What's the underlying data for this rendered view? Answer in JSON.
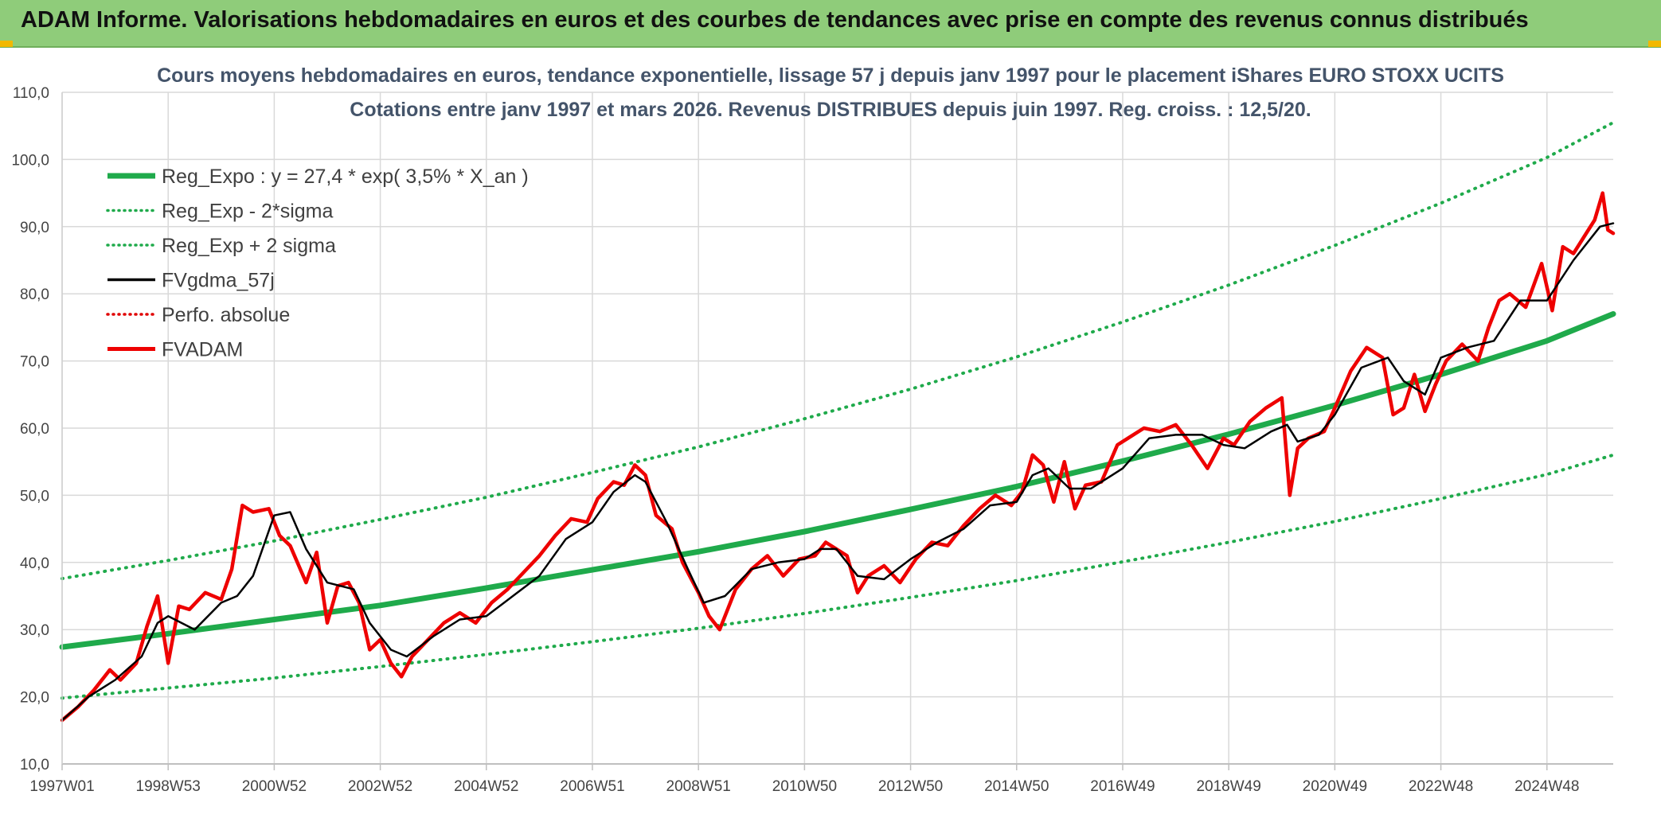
{
  "header": {
    "title": "ADAM Informe. Valorisations hebdomadaires en euros et des courbes de tendances avec prise en compte des revenus connus distribués"
  },
  "colors": {
    "header_bg": "#8fcc7a",
    "reg_expo": "#1faa4b",
    "sigma": "#1faa4b",
    "fvgdma": "#000000",
    "perfo": "#e00000",
    "fvadam": "#ee0000",
    "grid": "#d9d9d9"
  },
  "chart_data": {
    "type": "line",
    "title": "Cours moyens hebdomadaires en euros, tendance exponentielle, lissage 57 j depuis janv 1997 pour le placement iShares EURO STOXX UCITS",
    "subtitle": "Cotations entre janv 1997 et mars 2026. Revenus DISTRIBUES depuis juin 1997. Reg. croiss. : 12,5/20.",
    "ylim": [
      10,
      110
    ],
    "xlim": [
      1997.0,
      2026.25
    ],
    "y_ticks": [
      "10,0",
      "20,0",
      "30,0",
      "40,0",
      "50,0",
      "60,0",
      "70,0",
      "80,0",
      "90,0",
      "100,0",
      "110,0"
    ],
    "x_ticks": [
      {
        "label": "1997W01",
        "x": 1997.0
      },
      {
        "label": "1998W53",
        "x": 1999.0
      },
      {
        "label": "2000W52",
        "x": 2001.0
      },
      {
        "label": "2002W52",
        "x": 2003.0
      },
      {
        "label": "2004W52",
        "x": 2005.0
      },
      {
        "label": "2006W51",
        "x": 2007.0
      },
      {
        "label": "2008W51",
        "x": 2009.0
      },
      {
        "label": "2010W50",
        "x": 2011.0
      },
      {
        "label": "2012W50",
        "x": 2013.0
      },
      {
        "label": "2014W50",
        "x": 2015.0
      },
      {
        "label": "2016W49",
        "x": 2017.0
      },
      {
        "label": "2018W49",
        "x": 2019.0
      },
      {
        "label": "2020W49",
        "x": 2021.0
      },
      {
        "label": "2022W48",
        "x": 2023.0
      },
      {
        "label": "2024W48",
        "x": 2025.0
      }
    ],
    "grid": "both",
    "legend_position": "top-left",
    "series": [
      {
        "name": "Reg_Expo : y = 27,4 * exp( 3,5% *  X_an )",
        "style": "solid-thick",
        "color": "#1faa4b",
        "x": [
          1997.0,
          1999.0,
          2001.0,
          2003.0,
          2005.0,
          2007.0,
          2009.0,
          2011.0,
          2013.0,
          2015.0,
          2017.0,
          2019.0,
          2021.0,
          2023.0,
          2025.0,
          2026.25
        ],
        "y": [
          27.4,
          29.4,
          31.5,
          33.6,
          36.2,
          38.9,
          41.6,
          44.6,
          47.9,
          51.3,
          55.1,
          59.1,
          63.4,
          68.0,
          73.0,
          77.0
        ]
      },
      {
        "name": "Reg_Exp - 2*sigma",
        "style": "dotted",
        "color": "#1faa4b",
        "x": [
          1997.0,
          1999.0,
          2001.0,
          2003.0,
          2005.0,
          2007.0,
          2009.0,
          2011.0,
          2013.0,
          2015.0,
          2017.0,
          2019.0,
          2021.0,
          2023.0,
          2025.0,
          2026.25
        ],
        "y": [
          19.8,
          21.3,
          22.8,
          24.5,
          26.3,
          28.2,
          30.2,
          32.4,
          34.8,
          37.3,
          40.1,
          43.0,
          46.1,
          49.5,
          53.1,
          56.0
        ]
      },
      {
        "name": "Reg_Exp + 2 sigma",
        "style": "dotted",
        "color": "#1faa4b",
        "x": [
          1997.0,
          1999.0,
          2001.0,
          2003.0,
          2005.0,
          2007.0,
          2009.0,
          2011.0,
          2013.0,
          2015.0,
          2017.0,
          2019.0,
          2021.0,
          2023.0,
          2025.0,
          2026.25
        ],
        "y": [
          37.6,
          40.3,
          43.2,
          46.4,
          49.7,
          53.4,
          57.2,
          61.4,
          65.8,
          70.6,
          75.8,
          81.3,
          87.2,
          93.5,
          100.3,
          105.5
        ]
      },
      {
        "name": "FVgdma_57j",
        "style": "solid",
        "color": "#000000",
        "x": [
          1997.0,
          1997.5,
          1998.0,
          1998.5,
          1998.8,
          1999.0,
          1999.5,
          2000.0,
          2000.3,
          2000.6,
          2001.0,
          2001.3,
          2001.6,
          2002.0,
          2002.5,
          2002.8,
          2003.2,
          2003.5,
          2004.0,
          2004.5,
          2005.0,
          2005.5,
          2006.0,
          2006.5,
          2007.0,
          2007.4,
          2007.8,
          2008.0,
          2008.4,
          2008.8,
          2009.1,
          2009.5,
          2010.0,
          2010.5,
          2011.0,
          2011.3,
          2011.6,
          2012.0,
          2012.5,
          2013.0,
          2013.5,
          2014.0,
          2014.5,
          2015.0,
          2015.3,
          2015.6,
          2016.0,
          2016.4,
          2017.0,
          2017.5,
          2018.0,
          2018.5,
          2018.9,
          2019.3,
          2019.8,
          2020.1,
          2020.3,
          2020.7,
          2021.0,
          2021.5,
          2022.0,
          2022.3,
          2022.7,
          2023.0,
          2023.5,
          2024.0,
          2024.5,
          2025.0,
          2025.5,
          2026.0,
          2026.25
        ],
        "y": [
          16.5,
          20.0,
          22.5,
          26.0,
          31.0,
          32.0,
          30.0,
          34.0,
          35.0,
          38.0,
          47.0,
          47.5,
          42.0,
          37.0,
          36.0,
          31.0,
          27.0,
          26.0,
          29.0,
          31.5,
          32.0,
          35.0,
          38.0,
          43.5,
          46.0,
          50.5,
          53.0,
          52.0,
          46.0,
          39.0,
          34.0,
          35.0,
          39.0,
          40.0,
          40.5,
          42.0,
          42.0,
          38.0,
          37.5,
          40.5,
          43.0,
          45.0,
          48.5,
          49.0,
          53.0,
          54.0,
          51.0,
          51.0,
          54.0,
          58.5,
          59.0,
          59.0,
          57.5,
          57.0,
          59.5,
          60.5,
          58.0,
          59.0,
          62.0,
          69.0,
          70.5,
          67.0,
          65.0,
          70.5,
          72.0,
          73.0,
          79.0,
          79.0,
          85.0,
          90.0,
          90.5
        ]
      },
      {
        "name": "Perfo. absolue",
        "style": "dotted",
        "color": "#e00000",
        "x": [],
        "y": []
      },
      {
        "name": "FVADAM",
        "style": "solid-thick",
        "color": "#ee0000",
        "x": [
          1997.0,
          1997.3,
          1997.6,
          1997.9,
          1998.1,
          1998.4,
          1998.6,
          1998.8,
          1999.0,
          1999.2,
          1999.4,
          1999.7,
          2000.0,
          2000.2,
          2000.4,
          2000.6,
          2000.9,
          2001.1,
          2001.3,
          2001.6,
          2001.8,
          2002.0,
          2002.2,
          2002.4,
          2002.6,
          2002.8,
          2003.0,
          2003.2,
          2003.4,
          2003.6,
          2003.9,
          2004.2,
          2004.5,
          2004.8,
          2005.1,
          2005.4,
          2005.7,
          2006.0,
          2006.3,
          2006.6,
          2006.9,
          2007.1,
          2007.4,
          2007.6,
          2007.8,
          2008.0,
          2008.2,
          2008.5,
          2008.7,
          2009.0,
          2009.2,
          2009.4,
          2009.7,
          2010.0,
          2010.3,
          2010.6,
          2010.9,
          2011.2,
          2011.4,
          2011.6,
          2011.8,
          2012.0,
          2012.2,
          2012.5,
          2012.8,
          2013.1,
          2013.4,
          2013.7,
          2014.0,
          2014.3,
          2014.6,
          2014.9,
          2015.1,
          2015.3,
          2015.5,
          2015.7,
          2015.9,
          2016.1,
          2016.3,
          2016.6,
          2016.9,
          2017.1,
          2017.4,
          2017.7,
          2018.0,
          2018.3,
          2018.6,
          2018.9,
          2019.1,
          2019.4,
          2019.7,
          2020.0,
          2020.15,
          2020.3,
          2020.5,
          2020.8,
          2021.0,
          2021.3,
          2021.6,
          2021.9,
          2022.1,
          2022.3,
          2022.5,
          2022.7,
          2022.9,
          2023.1,
          2023.4,
          2023.7,
          2023.9,
          2024.1,
          2024.3,
          2024.6,
          2024.9,
          2025.1,
          2025.3,
          2025.5,
          2025.7,
          2025.9,
          2026.05,
          2026.15,
          2026.25
        ],
        "y": [
          16.5,
          18.5,
          21.0,
          24.0,
          22.5,
          25.0,
          30.5,
          35.0,
          25.0,
          33.5,
          33.0,
          35.5,
          34.5,
          39.0,
          48.5,
          47.5,
          48.0,
          44.0,
          42.5,
          37.0,
          41.5,
          31.0,
          36.5,
          37.0,
          34.0,
          27.0,
          28.5,
          25.0,
          23.0,
          26.0,
          28.5,
          31.0,
          32.5,
          31.0,
          34.0,
          36.0,
          38.5,
          41.0,
          44.0,
          46.5,
          46.0,
          49.5,
          52.0,
          51.5,
          54.5,
          53.0,
          47.0,
          45.0,
          40.0,
          35.5,
          32.0,
          30.0,
          36.0,
          39.0,
          41.0,
          38.0,
          40.5,
          41.0,
          43.0,
          42.0,
          41.0,
          35.5,
          38.0,
          39.5,
          37.0,
          40.5,
          43.0,
          42.5,
          45.5,
          48.0,
          50.0,
          48.5,
          50.5,
          56.0,
          54.5,
          49.0,
          55.0,
          48.0,
          51.5,
          52.0,
          57.5,
          58.5,
          60.0,
          59.5,
          60.5,
          57.5,
          54.0,
          58.5,
          57.5,
          61.0,
          63.0,
          64.5,
          50.0,
          57.0,
          58.5,
          59.5,
          63.0,
          68.5,
          72.0,
          70.5,
          62.0,
          63.0,
          68.0,
          62.5,
          66.5,
          70.0,
          72.5,
          70.0,
          75.0,
          79.0,
          80.0,
          78.0,
          84.5,
          77.5,
          87.0,
          86.0,
          88.5,
          91.0,
          95.0,
          89.5,
          89.0
        ]
      }
    ]
  }
}
